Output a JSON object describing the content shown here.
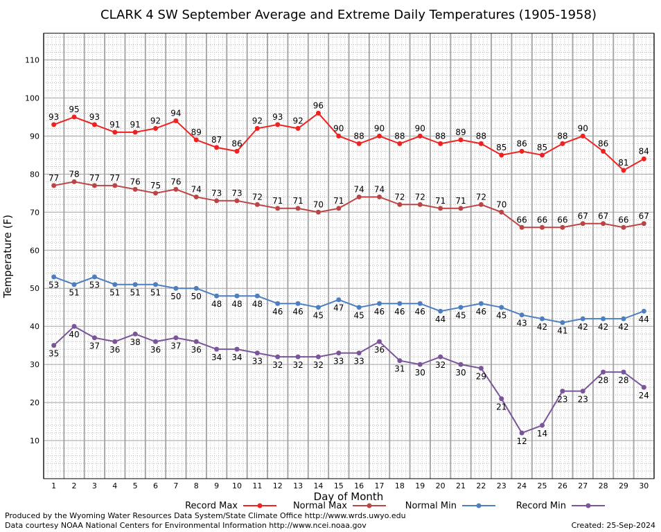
{
  "chart_data": {
    "type": "line",
    "title": "CLARK 4 SW September Average and Extreme Daily Temperatures (1905-1958)",
    "xlabel": "Day of Month",
    "ylabel": "Temperature (F)",
    "ylim": [
      0,
      117
    ],
    "yticks": [
      10,
      20,
      30,
      40,
      50,
      60,
      70,
      80,
      90,
      100,
      110
    ],
    "x": [
      1,
      2,
      3,
      4,
      5,
      6,
      7,
      8,
      9,
      10,
      11,
      12,
      13,
      14,
      15,
      16,
      17,
      18,
      19,
      20,
      21,
      22,
      23,
      24,
      25,
      26,
      27,
      28,
      29,
      30
    ],
    "grid": true,
    "legend_position": "bottom",
    "series": [
      {
        "name": "Record Max",
        "color": "#ee2222",
        "label_position": "above",
        "values": [
          93,
          95,
          93,
          91,
          91,
          92,
          94,
          89,
          87,
          86,
          92,
          93,
          92,
          96,
          90,
          88,
          90,
          88,
          90,
          88,
          89,
          88,
          85,
          86,
          85,
          88,
          90,
          86,
          81,
          84
        ]
      },
      {
        "name": "Normal Max",
        "color": "#bb4444",
        "label_position": "above",
        "values": [
          77,
          78,
          77,
          77,
          76,
          75,
          76,
          74,
          73,
          73,
          72,
          71,
          71,
          70,
          71,
          74,
          74,
          72,
          72,
          71,
          71,
          72,
          70,
          66,
          66,
          66,
          67,
          67,
          66,
          67
        ]
      },
      {
        "name": "Normal Min",
        "color": "#4d7fbf",
        "label_position": "below",
        "values": [
          53,
          51,
          53,
          51,
          51,
          51,
          50,
          50,
          48,
          48,
          48,
          46,
          46,
          45,
          47,
          45,
          46,
          46,
          46,
          44,
          45,
          46,
          45,
          43,
          42,
          41,
          42,
          42,
          42,
          44
        ]
      },
      {
        "name": "Record Min",
        "color": "#7a5599",
        "label_position": "below",
        "values": [
          35,
          40,
          37,
          36,
          38,
          36,
          37,
          36,
          34,
          34,
          33,
          32,
          32,
          32,
          33,
          33,
          36,
          31,
          30,
          32,
          30,
          29,
          21,
          12,
          14,
          23,
          23,
          28,
          28,
          24
        ]
      }
    ]
  },
  "footer": {
    "produced_by": "Produced by the Wyoming Water Resources Data System/State Climate Office http://www.wrds.uwyo.edu",
    "data_courtesy": "Data courtesy NOAA National Centers for Environmental Information http://www.ncei.noaa.gov",
    "created": "Created: 25-Sep-2024"
  }
}
